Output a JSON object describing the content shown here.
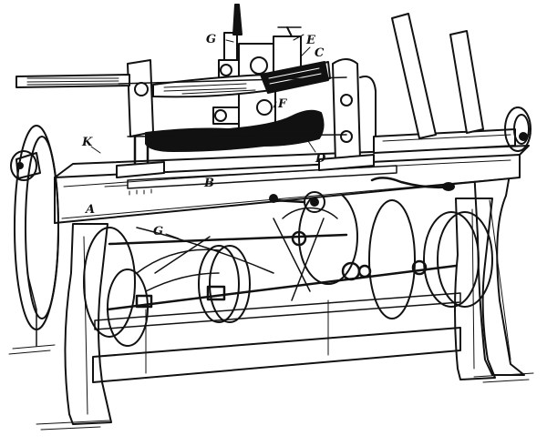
{
  "figure": {
    "colors": {
      "ink": "#111111",
      "paper": "#ffffff"
    },
    "labels": {
      "A": "A",
      "B": "B",
      "C": "C",
      "D": "D",
      "E": "E",
      "F": "F",
      "G_top": "G",
      "G_lower": "G",
      "K": "K"
    }
  }
}
